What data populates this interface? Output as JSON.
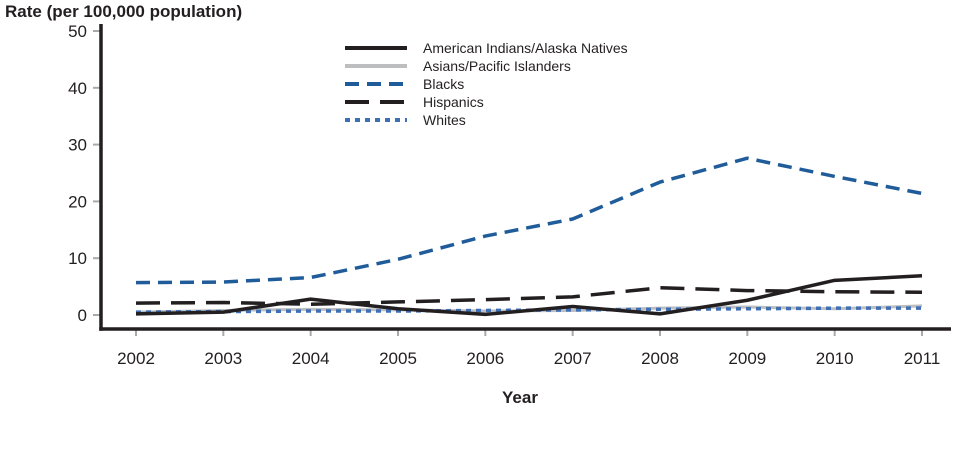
{
  "chart_data": {
    "type": "line",
    "title": "Rate (per 100,000 population)",
    "xlabel": "Year",
    "ylabel": "Rate (per 100,000 population)",
    "ylim": [
      0,
      50
    ],
    "yticks": [
      0,
      10,
      20,
      30,
      40,
      50
    ],
    "grid": false,
    "legend_position": "top-center-inside",
    "categories": [
      "2002",
      "2003",
      "2004",
      "2005",
      "2006",
      "2007",
      "2008",
      "2009",
      "2010",
      "2011"
    ],
    "series": [
      {
        "name": "American Indians/Alaska Natives",
        "color": "#231f20",
        "dash": "solid",
        "values": [
          0.2,
          0.5,
          2.8,
          1.1,
          0.1,
          1.5,
          0.2,
          2.6,
          6.1,
          6.9
        ]
      },
      {
        "name": "Asians/Pacific Islanders",
        "color": "#bcbec0",
        "dash": "solid",
        "values": [
          0.5,
          0.8,
          1.0,
          0.9,
          0.7,
          0.8,
          1.2,
          1.4,
          1.1,
          1.6
        ]
      },
      {
        "name": "Blacks",
        "color": "#1f5c99",
        "dash": "dashed",
        "values": [
          5.7,
          5.8,
          6.6,
          9.8,
          13.9,
          16.9,
          23.4,
          27.6,
          24.4,
          21.4
        ]
      },
      {
        "name": "Hispanics",
        "color": "#231f20",
        "dash": "long-dash",
        "values": [
          2.1,
          2.2,
          1.9,
          2.3,
          2.7,
          3.2,
          4.8,
          4.3,
          4.1,
          4.0
        ]
      },
      {
        "name": "Whites",
        "color": "#3e6fb5",
        "dash": "dotted",
        "values": [
          0.5,
          0.6,
          0.7,
          0.7,
          0.8,
          0.9,
          1.0,
          1.1,
          1.2,
          1.2
        ]
      }
    ],
    "axis_color": "#231f20",
    "tick_color": "#a7a9ac",
    "label_color": "#231f20"
  }
}
